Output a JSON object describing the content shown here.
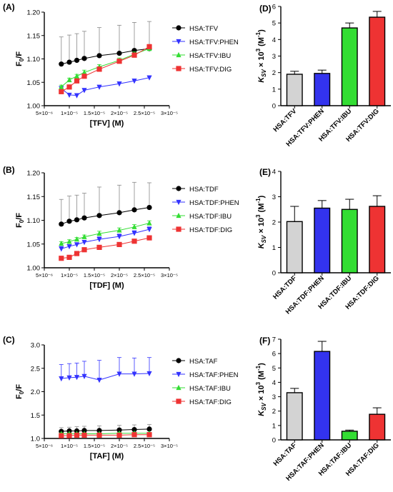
{
  "chart_data": [
    {
      "panel": "(A)",
      "type": "scatter",
      "xlabel": "[TFV] (M)",
      "ylabel": "F0/F",
      "xlim": [
        5e-06,
        3e-05
      ],
      "ylim": [
        1.0,
        1.2
      ],
      "xticks": [
        5e-06,
        1e-05,
        1.5e-05,
        2e-05,
        2.5e-05,
        3e-05
      ],
      "xtick_labels": [
        "5×10⁻⁶",
        "1×10⁻⁵",
        "1.5×10⁻⁵",
        "2×10⁻⁵",
        "2.5×10⁻⁵",
        "3×10⁻⁵"
      ],
      "yticks": [
        1.0,
        1.05,
        1.1,
        1.15,
        1.2
      ],
      "ytick_labels": [
        "1.00",
        "1.05",
        "1.10",
        "1.15",
        "1.20"
      ],
      "legend": "right",
      "series": [
        {
          "name": "HSA:TFV",
          "color": "#000000",
          "marker": "circle",
          "x": [
            8.4e-06,
            1e-05,
            1.15e-05,
            1.3e-05,
            1.6e-05,
            2e-05,
            2.3e-05,
            2.6e-05
          ],
          "y": [
            1.089,
            1.093,
            1.097,
            1.101,
            1.107,
            1.112,
            1.118,
            1.122
          ],
          "err": [
            0.058,
            0.058,
            0.057,
            0.058,
            0.06,
            0.06,
            0.06,
            0.058
          ]
        },
        {
          "name": "HSA:TFV:PHEN",
          "color": "#3333ff",
          "marker": "triangle-down",
          "x": [
            8.4e-06,
            1e-05,
            1.15e-05,
            1.3e-05,
            1.6e-05,
            2e-05,
            2.3e-05,
            2.6e-05
          ],
          "y": [
            1.037,
            1.023,
            1.022,
            1.033,
            1.04,
            1.047,
            1.053,
            1.06
          ],
          "err": [
            0.004,
            0.003,
            0.003,
            0.004,
            0.004,
            0.004,
            0.004,
            0.004
          ]
        },
        {
          "name": "HSA:TFV:IBU",
          "color": "#33dd33",
          "marker": "triangle",
          "x": [
            8.4e-06,
            1e-05,
            1.15e-05,
            1.3e-05,
            1.6e-05,
            2e-05,
            2.3e-05,
            2.6e-05
          ],
          "y": [
            1.04,
            1.055,
            1.063,
            1.071,
            1.083,
            1.097,
            1.11,
            1.122
          ],
          "err": [
            0.004,
            0.004,
            0.004,
            0.005,
            0.005,
            0.005,
            0.005,
            0.005
          ]
        },
        {
          "name": "HSA:TFV:DIG",
          "color": "#ee3333",
          "marker": "square",
          "x": [
            8.4e-06,
            1e-05,
            1.15e-05,
            1.3e-05,
            1.6e-05,
            2e-05,
            2.3e-05,
            2.6e-05
          ],
          "y": [
            1.03,
            1.04,
            1.053,
            1.063,
            1.078,
            1.095,
            1.108,
            1.126
          ],
          "err": [
            0.004,
            0.004,
            0.004,
            0.004,
            0.005,
            0.005,
            0.005,
            0.005
          ]
        }
      ]
    },
    {
      "panel": "(D)",
      "type": "bar",
      "ylabel": "Ksv × 10³ (M⁻¹)",
      "ylim": [
        0,
        6
      ],
      "yticks": [
        0,
        1,
        2,
        3,
        4,
        5,
        6
      ],
      "categories": [
        "HSA:TFV",
        "HSA:TFV:PHEN",
        "HSA:TFV:IBU",
        "HSA:TFV:DIG"
      ],
      "values": [
        1.9,
        1.95,
        4.7,
        5.35
      ],
      "errors": [
        0.18,
        0.2,
        0.3,
        0.35
      ],
      "colors": [
        "#d3d3d3",
        "#3333ee",
        "#33dd33",
        "#ee3333"
      ]
    },
    {
      "panel": "(B)",
      "type": "scatter",
      "xlabel": "[TDF] (M)",
      "ylabel": "F0/F",
      "xlim": [
        5e-06,
        3e-05
      ],
      "ylim": [
        1.0,
        1.2
      ],
      "xticks": [
        5e-06,
        1e-05,
        1.5e-05,
        2e-05,
        2.5e-05,
        3e-05
      ],
      "xtick_labels": [
        "5×10⁻⁶",
        "1×10⁻⁵",
        "1.5×10⁻⁵",
        "2×10⁻⁵",
        "2.5×10⁻⁵",
        "3×10⁻⁵"
      ],
      "yticks": [
        1.0,
        1.05,
        1.1,
        1.15,
        1.2
      ],
      "ytick_labels": [
        "1.00",
        "1.05",
        "1.10",
        "1.15",
        "1.20"
      ],
      "legend": "right",
      "series": [
        {
          "name": "HSA:TDF",
          "color": "#000000",
          "marker": "circle",
          "x": [
            8.4e-06,
            1e-05,
            1.15e-05,
            1.3e-05,
            1.6e-05,
            2e-05,
            2.3e-05,
            2.6e-05
          ],
          "y": [
            1.092,
            1.098,
            1.101,
            1.105,
            1.11,
            1.116,
            1.122,
            1.127
          ],
          "err": [
            0.052,
            0.053,
            0.052,
            0.052,
            0.06,
            0.058,
            0.058,
            0.052
          ]
        },
        {
          "name": "HSA:TDF:PHEN",
          "color": "#3333ff",
          "marker": "triangle-down",
          "x": [
            8.4e-06,
            1e-05,
            1.15e-05,
            1.3e-05,
            1.6e-05,
            2e-05,
            2.3e-05,
            2.6e-05
          ],
          "y": [
            1.04,
            1.045,
            1.049,
            1.054,
            1.06,
            1.066,
            1.073,
            1.081
          ],
          "err": [
            0.005,
            0.004,
            0.004,
            0.004,
            0.005,
            0.005,
            0.005,
            0.005
          ]
        },
        {
          "name": "HSA:TDF:IBU",
          "color": "#33dd33",
          "marker": "triangle",
          "x": [
            8.4e-06,
            1e-05,
            1.15e-05,
            1.3e-05,
            1.6e-05,
            2e-05,
            2.3e-05,
            2.6e-05
          ],
          "y": [
            1.051,
            1.055,
            1.06,
            1.065,
            1.072,
            1.079,
            1.086,
            1.094
          ],
          "err": [
            0.004,
            0.004,
            0.004,
            0.004,
            0.005,
            0.005,
            0.005,
            0.005
          ]
        },
        {
          "name": "HSA:TDF:DIG",
          "color": "#ee3333",
          "marker": "square",
          "x": [
            8.4e-06,
            1e-05,
            1.15e-05,
            1.3e-05,
            1.6e-05,
            2e-05,
            2.3e-05,
            2.6e-05
          ],
          "y": [
            1.02,
            1.022,
            1.03,
            1.038,
            1.043,
            1.049,
            1.056,
            1.063
          ],
          "err": [
            0.004,
            0.003,
            0.003,
            0.003,
            0.004,
            0.004,
            0.004,
            0.004
          ]
        }
      ]
    },
    {
      "panel": "(E)",
      "type": "bar",
      "ylabel": "Ksv × 10³ (M⁻¹)",
      "ylim": [
        0,
        4
      ],
      "yticks": [
        0,
        1,
        2,
        3,
        4
      ],
      "categories": [
        "HSA:TDF",
        "HSA:TDF:PHEN",
        "HSA:TDF:IBU",
        "HSA:TDF:DIG"
      ],
      "values": [
        2.02,
        2.55,
        2.5,
        2.62
      ],
      "errors": [
        0.6,
        0.3,
        0.4,
        0.42
      ],
      "colors": [
        "#d3d3d3",
        "#3333ee",
        "#33dd33",
        "#ee3333"
      ]
    },
    {
      "panel": "(C)",
      "type": "scatter",
      "xlabel": "[TAF] (M)",
      "ylabel": "F0/F",
      "xlim": [
        5e-06,
        3e-05
      ],
      "ylim": [
        1.0,
        3.0
      ],
      "xticks": [
        5e-06,
        1e-05,
        1.5e-05,
        2e-05,
        2.5e-05,
        3e-05
      ],
      "xtick_labels": [
        "5×10⁻⁶",
        "1×10⁻⁵",
        "1.5×10⁻⁵",
        "2×10⁻⁵",
        "2.5×10⁻⁵",
        "3×10⁻⁵"
      ],
      "yticks": [
        1.0,
        1.5,
        2.0,
        2.5,
        3.0
      ],
      "ytick_labels": [
        "1.0",
        "1.5",
        "2.0",
        "2.5",
        "3.0"
      ],
      "legend": "right",
      "series": [
        {
          "name": "HSA:TAF",
          "color": "#000000",
          "marker": "circle",
          "x": [
            8.4e-06,
            1e-05,
            1.15e-05,
            1.3e-05,
            1.6e-05,
            2e-05,
            2.3e-05,
            2.6e-05
          ],
          "y": [
            1.15,
            1.16,
            1.16,
            1.17,
            1.17,
            1.18,
            1.19,
            1.2
          ],
          "err": [
            0.08,
            0.08,
            0.09,
            0.09,
            0.1,
            0.1,
            0.1,
            0.1
          ]
        },
        {
          "name": "HSA:TAF:PHEN",
          "color": "#3333ff",
          "marker": "triangle-down",
          "x": [
            8.4e-06,
            1e-05,
            1.15e-05,
            1.3e-05,
            1.6e-05,
            2e-05,
            2.3e-05,
            2.6e-05
          ],
          "y": [
            2.28,
            2.3,
            2.31,
            2.33,
            2.25,
            2.38,
            2.38,
            2.39
          ],
          "err": [
            0.3,
            0.3,
            0.3,
            0.32,
            0.42,
            0.35,
            0.34,
            0.34
          ]
        },
        {
          "name": "HSA:TAF:IBU",
          "color": "#33dd33",
          "marker": "triangle",
          "x": [
            8.4e-06,
            1e-05,
            1.15e-05,
            1.3e-05,
            1.6e-05,
            2e-05,
            2.3e-05,
            2.6e-05
          ],
          "y": [
            1.1,
            1.1,
            1.1,
            1.1,
            1.1,
            1.11,
            1.11,
            1.11
          ],
          "err": [
            0.02,
            0.02,
            0.02,
            0.02,
            0.02,
            0.02,
            0.02,
            0.02
          ]
        },
        {
          "name": "HSA:TAF:DIG",
          "color": "#ee3333",
          "marker": "square",
          "x": [
            8.4e-06,
            1e-05,
            1.15e-05,
            1.3e-05,
            1.6e-05,
            2e-05,
            2.3e-05,
            2.6e-05
          ],
          "y": [
            1.06,
            1.06,
            1.07,
            1.07,
            1.07,
            1.07,
            1.08,
            1.08
          ],
          "err": [
            0.03,
            0.03,
            0.03,
            0.03,
            0.03,
            0.03,
            0.03,
            0.03
          ]
        }
      ]
    },
    {
      "panel": "(F)",
      "type": "bar",
      "ylabel": "Ksv × 10³ (M⁻¹)",
      "ylim": [
        0,
        7
      ],
      "yticks": [
        0,
        1,
        2,
        3,
        4,
        5,
        6,
        7
      ],
      "categories": [
        "HSA:TAF",
        "HSA:TAF:PHEN",
        "HSA:TAF:IBU",
        "HSA:TAF:DIG"
      ],
      "values": [
        3.28,
        6.15,
        0.6,
        1.78
      ],
      "errors": [
        0.3,
        0.7,
        0.08,
        0.45
      ],
      "colors": [
        "#d3d3d3",
        "#3333ee",
        "#33dd33",
        "#ee3333"
      ]
    }
  ]
}
